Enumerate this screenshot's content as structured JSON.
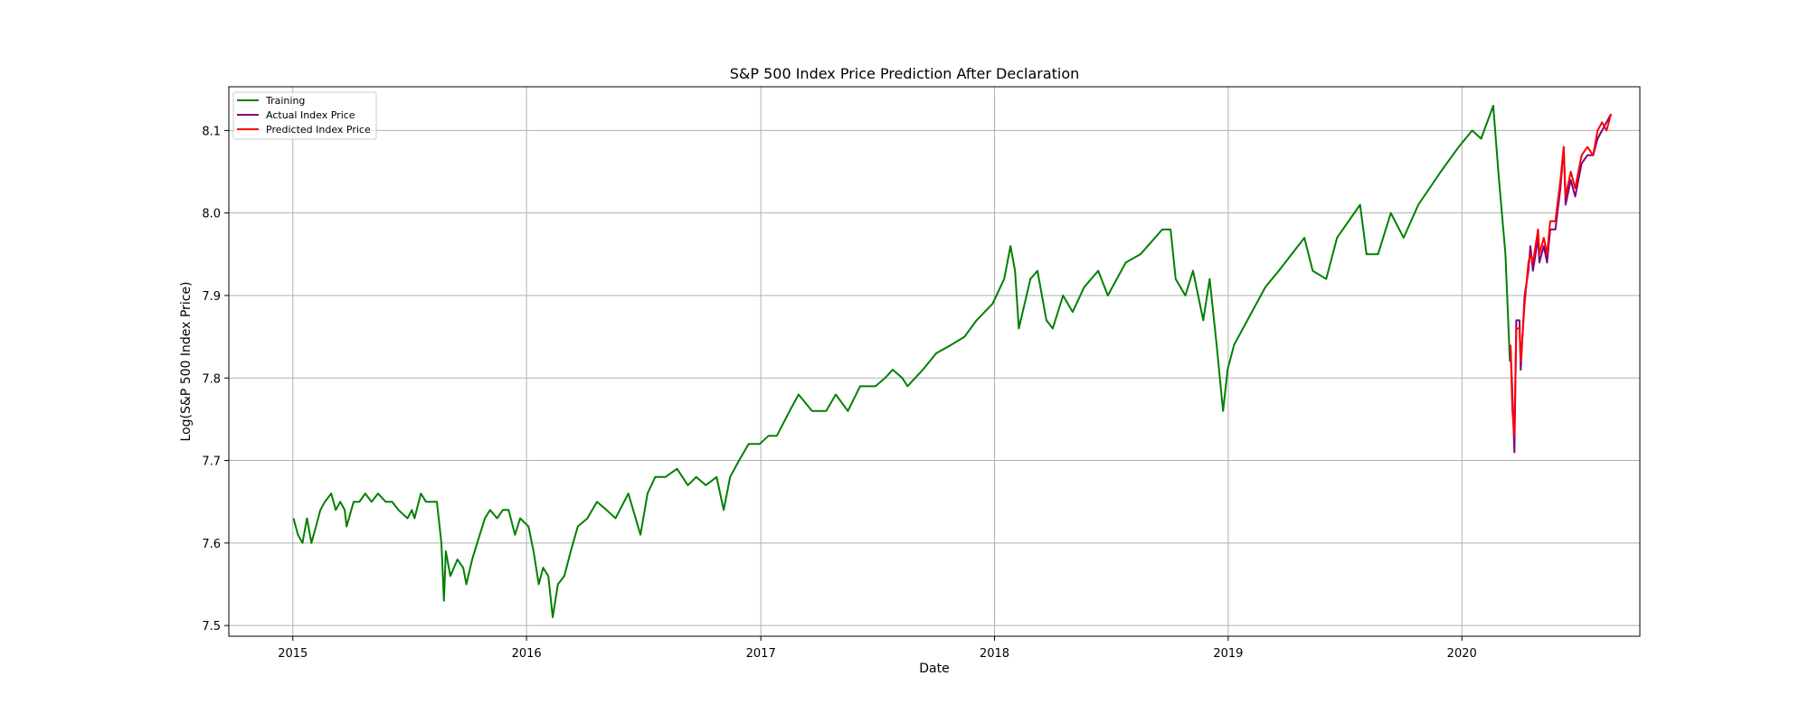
{
  "chart_data": {
    "type": "line",
    "title": "S&P 500 Index Price Prediction After Declaration",
    "xlabel": "Date",
    "ylabel": "Log(S&P 500 Index Price)",
    "xlim": [
      "2014-09-23",
      "2020-10-05"
    ],
    "ylim": [
      7.487,
      8.153
    ],
    "x_ticks": [
      {
        "label": "2015",
        "date": "2015-01-01"
      },
      {
        "label": "2016",
        "date": "2016-01-01"
      },
      {
        "label": "2017",
        "date": "2017-01-01"
      },
      {
        "label": "2018",
        "date": "2018-01-01"
      },
      {
        "label": "2019",
        "date": "2019-01-01"
      },
      {
        "label": "2020",
        "date": "2020-01-01"
      }
    ],
    "y_ticks": [
      7.5,
      7.6,
      7.7,
      7.8,
      7.9,
      8.0,
      8.1
    ],
    "y_tick_labels": [
      "7.5",
      "7.6",
      "7.7",
      "7.8",
      "7.9",
      "8.0",
      "8.1"
    ],
    "grid": true,
    "legend_position": "upper-left",
    "series": [
      {
        "name": "Training",
        "color": "#008000",
        "points": [
          [
            "2015-01-02",
            7.63
          ],
          [
            "2015-01-09",
            7.61
          ],
          [
            "2015-01-16",
            7.6
          ],
          [
            "2015-01-23",
            7.63
          ],
          [
            "2015-01-30",
            7.6
          ],
          [
            "2015-02-06",
            7.62
          ],
          [
            "2015-02-13",
            7.64
          ],
          [
            "2015-02-20",
            7.65
          ],
          [
            "2015-03-02",
            7.66
          ],
          [
            "2015-03-09",
            7.64
          ],
          [
            "2015-03-16",
            7.65
          ],
          [
            "2015-03-23",
            7.64
          ],
          [
            "2015-03-26",
            7.62
          ],
          [
            "2015-04-06",
            7.65
          ],
          [
            "2015-04-15",
            7.65
          ],
          [
            "2015-04-24",
            7.66
          ],
          [
            "2015-05-04",
            7.65
          ],
          [
            "2015-05-14",
            7.66
          ],
          [
            "2015-05-26",
            7.65
          ],
          [
            "2015-06-05",
            7.65
          ],
          [
            "2015-06-15",
            7.64
          ],
          [
            "2015-06-29",
            7.63
          ],
          [
            "2015-07-06",
            7.64
          ],
          [
            "2015-07-10",
            7.63
          ],
          [
            "2015-07-20",
            7.66
          ],
          [
            "2015-07-28",
            7.65
          ],
          [
            "2015-08-05",
            7.65
          ],
          [
            "2015-08-14",
            7.65
          ],
          [
            "2015-08-21",
            7.6
          ],
          [
            "2015-08-25",
            7.53
          ],
          [
            "2015-08-28",
            7.59
          ],
          [
            "2015-09-04",
            7.56
          ],
          [
            "2015-09-15",
            7.58
          ],
          [
            "2015-09-24",
            7.57
          ],
          [
            "2015-09-29",
            7.55
          ],
          [
            "2015-10-08",
            7.58
          ],
          [
            "2015-10-16",
            7.6
          ],
          [
            "2015-10-28",
            7.63
          ],
          [
            "2015-11-05",
            7.64
          ],
          [
            "2015-11-16",
            7.63
          ],
          [
            "2015-11-25",
            7.64
          ],
          [
            "2015-12-04",
            7.64
          ],
          [
            "2015-12-14",
            7.61
          ],
          [
            "2015-12-22",
            7.63
          ],
          [
            "2016-01-04",
            7.62
          ],
          [
            "2016-01-12",
            7.59
          ],
          [
            "2016-01-20",
            7.55
          ],
          [
            "2016-01-27",
            7.57
          ],
          [
            "2016-02-04",
            7.56
          ],
          [
            "2016-02-11",
            7.51
          ],
          [
            "2016-02-19",
            7.55
          ],
          [
            "2016-02-29",
            7.56
          ],
          [
            "2016-03-10",
            7.59
          ],
          [
            "2016-03-21",
            7.62
          ],
          [
            "2016-04-05",
            7.63
          ],
          [
            "2016-04-20",
            7.65
          ],
          [
            "2016-05-05",
            7.64
          ],
          [
            "2016-05-19",
            7.63
          ],
          [
            "2016-06-08",
            7.66
          ],
          [
            "2016-06-27",
            7.61
          ],
          [
            "2016-07-08",
            7.66
          ],
          [
            "2016-07-20",
            7.68
          ],
          [
            "2016-08-05",
            7.68
          ],
          [
            "2016-08-23",
            7.69
          ],
          [
            "2016-09-09",
            7.67
          ],
          [
            "2016-09-22",
            7.68
          ],
          [
            "2016-10-07",
            7.67
          ],
          [
            "2016-10-24",
            7.68
          ],
          [
            "2016-11-04",
            7.64
          ],
          [
            "2016-11-14",
            7.68
          ],
          [
            "2016-11-28",
            7.7
          ],
          [
            "2016-12-13",
            7.72
          ],
          [
            "2016-12-30",
            7.72
          ],
          [
            "2017-01-13",
            7.73
          ],
          [
            "2017-01-26",
            7.73
          ],
          [
            "2017-02-15",
            7.76
          ],
          [
            "2017-03-01",
            7.78
          ],
          [
            "2017-03-22",
            7.76
          ],
          [
            "2017-04-13",
            7.76
          ],
          [
            "2017-04-28",
            7.78
          ],
          [
            "2017-05-17",
            7.76
          ],
          [
            "2017-06-05",
            7.79
          ],
          [
            "2017-06-29",
            7.79
          ],
          [
            "2017-07-14",
            7.8
          ],
          [
            "2017-07-26",
            7.81
          ],
          [
            "2017-08-10",
            7.8
          ],
          [
            "2017-08-18",
            7.79
          ],
          [
            "2017-09-11",
            7.81
          ],
          [
            "2017-10-02",
            7.83
          ],
          [
            "2017-10-25",
            7.84
          ],
          [
            "2017-11-15",
            7.85
          ],
          [
            "2017-12-04",
            7.87
          ],
          [
            "2017-12-29",
            7.89
          ],
          [
            "2018-01-16",
            7.92
          ],
          [
            "2018-01-26",
            7.96
          ],
          [
            "2018-02-02",
            7.93
          ],
          [
            "2018-02-08",
            7.86
          ],
          [
            "2018-02-26",
            7.92
          ],
          [
            "2018-03-09",
            7.93
          ],
          [
            "2018-03-23",
            7.87
          ],
          [
            "2018-04-02",
            7.86
          ],
          [
            "2018-04-18",
            7.9
          ],
          [
            "2018-05-03",
            7.88
          ],
          [
            "2018-05-21",
            7.91
          ],
          [
            "2018-06-12",
            7.93
          ],
          [
            "2018-06-27",
            7.9
          ],
          [
            "2018-07-25",
            7.94
          ],
          [
            "2018-08-17",
            7.95
          ],
          [
            "2018-09-20",
            7.98
          ],
          [
            "2018-10-03",
            7.98
          ],
          [
            "2018-10-11",
            7.92
          ],
          [
            "2018-10-26",
            7.9
          ],
          [
            "2018-11-07",
            7.93
          ],
          [
            "2018-11-23",
            7.87
          ],
          [
            "2018-12-03",
            7.92
          ],
          [
            "2018-12-14",
            7.84
          ],
          [
            "2018-12-24",
            7.76
          ],
          [
            "2018-12-31",
            7.81
          ],
          [
            "2019-01-10",
            7.84
          ],
          [
            "2019-01-31",
            7.87
          ],
          [
            "2019-02-28",
            7.91
          ],
          [
            "2019-03-21",
            7.93
          ],
          [
            "2019-04-30",
            7.97
          ],
          [
            "2019-05-13",
            7.93
          ],
          [
            "2019-06-03",
            7.92
          ],
          [
            "2019-06-20",
            7.97
          ],
          [
            "2019-07-26",
            8.01
          ],
          [
            "2019-08-05",
            7.95
          ],
          [
            "2019-08-23",
            7.95
          ],
          [
            "2019-09-12",
            8.0
          ],
          [
            "2019-10-02",
            7.97
          ],
          [
            "2019-10-25",
            8.01
          ],
          [
            "2019-11-29",
            8.05
          ],
          [
            "2019-12-27",
            8.08
          ],
          [
            "2020-01-17",
            8.1
          ],
          [
            "2020-01-31",
            8.09
          ],
          [
            "2020-02-19",
            8.13
          ],
          [
            "2020-02-28",
            8.04
          ],
          [
            "2020-03-09",
            7.95
          ],
          [
            "2020-03-16",
            7.82
          ]
        ]
      },
      {
        "name": "Actual Index Price",
        "color": "#800080",
        "points": [
          [
            "2020-03-17",
            7.84
          ],
          [
            "2020-03-20",
            7.78
          ],
          [
            "2020-03-23",
            7.71
          ],
          [
            "2020-03-26",
            7.87
          ],
          [
            "2020-03-31",
            7.87
          ],
          [
            "2020-04-02",
            7.81
          ],
          [
            "2020-04-08",
            7.9
          ],
          [
            "2020-04-14",
            7.93
          ],
          [
            "2020-04-17",
            7.96
          ],
          [
            "2020-04-21",
            7.93
          ],
          [
            "2020-04-29",
            7.97
          ],
          [
            "2020-05-01",
            7.94
          ],
          [
            "2020-05-08",
            7.96
          ],
          [
            "2020-05-13",
            7.94
          ],
          [
            "2020-05-18",
            7.98
          ],
          [
            "2020-05-26",
            7.98
          ],
          [
            "2020-06-03",
            8.03
          ],
          [
            "2020-06-08",
            8.08
          ],
          [
            "2020-06-11",
            8.01
          ],
          [
            "2020-06-19",
            8.04
          ],
          [
            "2020-06-26",
            8.02
          ],
          [
            "2020-07-06",
            8.06
          ],
          [
            "2020-07-15",
            8.07
          ],
          [
            "2020-07-24",
            8.07
          ],
          [
            "2020-07-31",
            8.09
          ],
          [
            "2020-08-07",
            8.1
          ],
          [
            "2020-08-14",
            8.11
          ],
          [
            "2020-08-21",
            8.12
          ]
        ]
      },
      {
        "name": "Predicted Index Price",
        "color": "#ff0000",
        "points": [
          [
            "2020-03-17",
            7.84
          ],
          [
            "2020-03-20",
            7.76
          ],
          [
            "2020-03-23",
            7.73
          ],
          [
            "2020-03-26",
            7.86
          ],
          [
            "2020-03-31",
            7.86
          ],
          [
            "2020-04-02",
            7.82
          ],
          [
            "2020-04-08",
            7.89
          ],
          [
            "2020-04-14",
            7.94
          ],
          [
            "2020-04-17",
            7.95
          ],
          [
            "2020-04-21",
            7.94
          ],
          [
            "2020-04-29",
            7.98
          ],
          [
            "2020-05-01",
            7.95
          ],
          [
            "2020-05-08",
            7.97
          ],
          [
            "2020-05-13",
            7.95
          ],
          [
            "2020-05-18",
            7.99
          ],
          [
            "2020-05-26",
            7.99
          ],
          [
            "2020-06-03",
            8.04
          ],
          [
            "2020-06-08",
            8.08
          ],
          [
            "2020-06-11",
            8.02
          ],
          [
            "2020-06-19",
            8.05
          ],
          [
            "2020-06-26",
            8.03
          ],
          [
            "2020-07-06",
            8.07
          ],
          [
            "2020-07-15",
            8.08
          ],
          [
            "2020-07-24",
            8.07
          ],
          [
            "2020-07-31",
            8.1
          ],
          [
            "2020-08-07",
            8.11
          ],
          [
            "2020-08-14",
            8.1
          ],
          [
            "2020-08-21",
            8.12
          ]
        ]
      }
    ]
  }
}
